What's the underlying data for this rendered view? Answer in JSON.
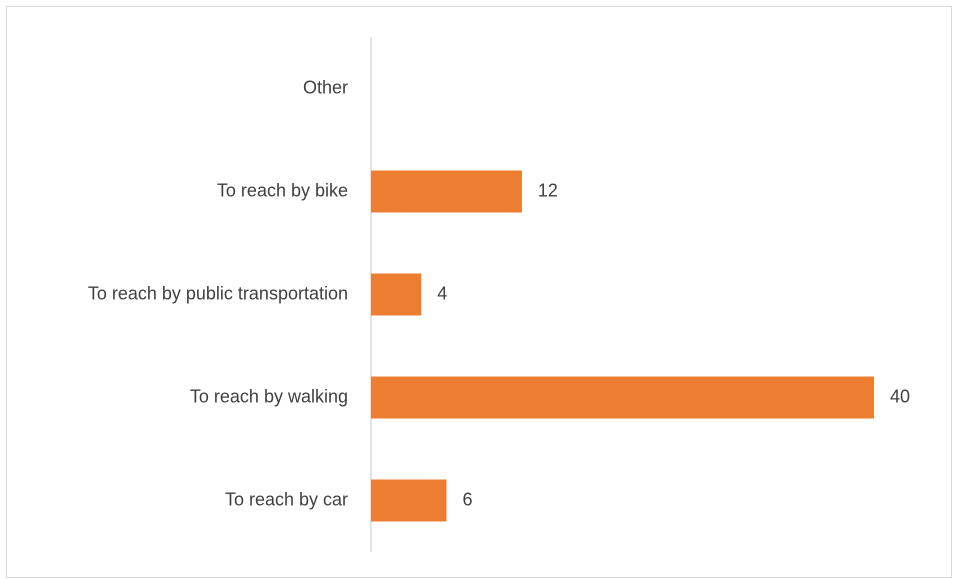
{
  "chart_data": {
    "type": "bar",
    "orientation": "horizontal",
    "categories": [
      "Other",
      "To reach by bike",
      "To reach by public transportation",
      "To reach by walking",
      "To reach by car"
    ],
    "values": [
      null,
      12,
      4,
      40,
      6
    ],
    "color": "#ed7d31"
  }
}
